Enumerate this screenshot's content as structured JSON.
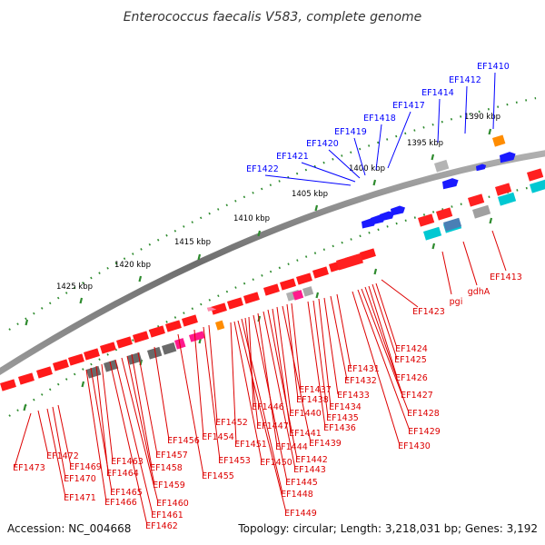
{
  "title": "Enterococcus faecalis V583, complete genome",
  "footer": {
    "accession": "Accession: NC_004668",
    "summary": "Topology: circular; Length: 3,218,031 bp; Genes: 3,192"
  },
  "colors": {
    "forward_gene": "#ff0000",
    "reverse_gene_blue": "#0000ff",
    "backbone": "#808080",
    "scale_dots": "#228b22",
    "label_forward": "#0000ff",
    "label_reverse": "#dd0000"
  },
  "scale_labels": [
    "1390 kbp",
    "1395 kbp",
    "1400 kbp",
    "1405 kbp",
    "1410 kbp",
    "1415 kbp",
    "1420 kbp",
    "1425 kbp"
  ],
  "genes_upper": [
    "EF1410",
    "EF1412",
    "EF1414",
    "EF1417",
    "EF1418",
    "EF1419",
    "EF1420",
    "EF1421",
    "EF1422"
  ],
  "genes_lower_right": [
    "EF1413",
    "gdhA",
    "pgi",
    "EF1423"
  ],
  "genes_lower": [
    "EF1424",
    "EF1425",
    "EF1426",
    "EF1427",
    "EF1428",
    "EF1429",
    "EF1430",
    "EF1431",
    "EF1432",
    "EF1433",
    "EF1434",
    "EF1435",
    "EF1436",
    "EF1437",
    "EF1438",
    "EF1439",
    "EF1440",
    "EF1441",
    "EF1442",
    "EF1443",
    "EF1444",
    "EF1445",
    "EF1446",
    "EF1447",
    "EF1448",
    "EF1449",
    "EF1450",
    "EF1451",
    "EF1452",
    "EF1453",
    "EF1454",
    "EF1455",
    "EF1456",
    "EF1457",
    "EF1458",
    "EF1459",
    "EF1460",
    "EF1461",
    "EF1462",
    "EF1463",
    "EF1464",
    "EF1465",
    "EF1466",
    "EF1469",
    "EF1470",
    "EF1471",
    "EF1472",
    "EF1473"
  ]
}
